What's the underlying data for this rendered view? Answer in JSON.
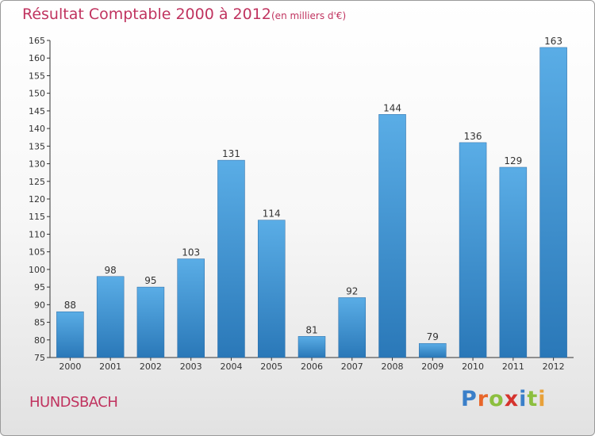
{
  "header": {
    "title": "Résultat Comptable 2000 à 2012",
    "unit": "(en milliers d'€)"
  },
  "footer": {
    "commune": "HUNDSBACH",
    "logo_text": "Proxiti"
  },
  "colors": {
    "accent": "#c0335f",
    "bar_light": "#5aade6",
    "bar_dark": "#2a78b8",
    "logo_letters": [
      "#3a7fc9",
      "#e8662a",
      "#8cbf3f",
      "#d5332d",
      "#3a7fc9",
      "#8cbf3f",
      "#e8a13a"
    ]
  },
  "chart_data": {
    "type": "bar",
    "title": "Résultat Comptable 2000 à 2012",
    "subtitle": "(en milliers d'€)",
    "xlabel": "",
    "ylabel": "",
    "categories": [
      "2000",
      "2001",
      "2002",
      "2003",
      "2004",
      "2005",
      "2006",
      "2007",
      "2008",
      "2009",
      "2010",
      "2011",
      "2012"
    ],
    "values": [
      88,
      98,
      95,
      103,
      131,
      114,
      81,
      92,
      144,
      79,
      136,
      129,
      163
    ],
    "ylim": [
      75,
      165
    ],
    "yticks": [
      75,
      80,
      85,
      90,
      95,
      100,
      105,
      110,
      115,
      120,
      125,
      130,
      135,
      140,
      145,
      150,
      155,
      160,
      165
    ],
    "grid": false,
    "data_labels": true
  }
}
